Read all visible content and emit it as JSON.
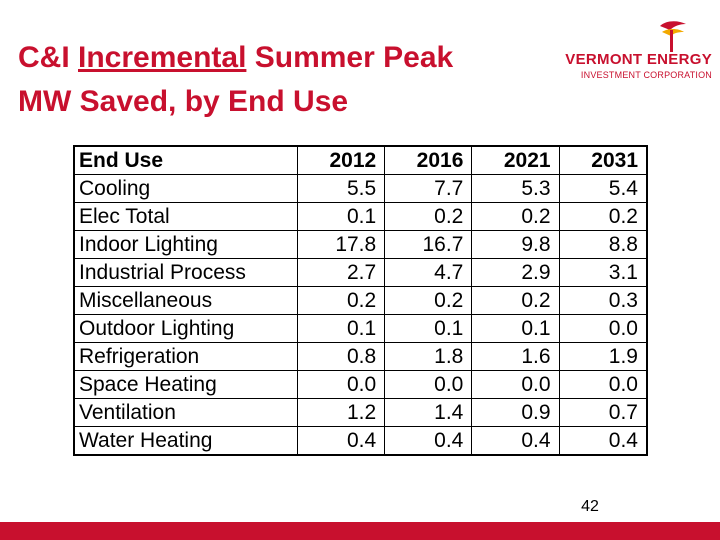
{
  "title": {
    "pre": "C&I ",
    "underlined": "Incremental",
    "post": " Summer Peak",
    "line2": "MW Saved, by End Use"
  },
  "logo": {
    "line1": "VERMONT ENERGY",
    "line2": "INVESTMENT CORPORATION",
    "colors": {
      "red": "#c8102e",
      "gold": "#f2a900"
    }
  },
  "table": {
    "headers": [
      "End Use",
      "2012",
      "2016",
      "2021",
      "2031"
    ],
    "rows": [
      [
        "Cooling",
        "5.5",
        "7.7",
        "5.3",
        "5.4"
      ],
      [
        "Elec Total",
        "0.1",
        "0.2",
        "0.2",
        "0.2"
      ],
      [
        "Indoor Lighting",
        "17.8",
        "16.7",
        "9.8",
        "8.8"
      ],
      [
        "Industrial Process",
        "2.7",
        "4.7",
        "2.9",
        "3.1"
      ],
      [
        "Miscellaneous",
        "0.2",
        "0.2",
        "0.2",
        "0.3"
      ],
      [
        "Outdoor Lighting",
        "0.1",
        "0.1",
        "0.1",
        "0.0"
      ],
      [
        "Refrigeration",
        "0.8",
        "1.8",
        "1.6",
        "1.9"
      ],
      [
        "Space Heating",
        "0.0",
        "0.0",
        "0.0",
        "0.0"
      ],
      [
        "Ventilation",
        "1.2",
        "1.4",
        "0.9",
        "0.7"
      ],
      [
        "Water Heating",
        "0.4",
        "0.4",
        "0.4",
        "0.4"
      ]
    ]
  },
  "page_number": "42",
  "accent_color": "#c8102e"
}
